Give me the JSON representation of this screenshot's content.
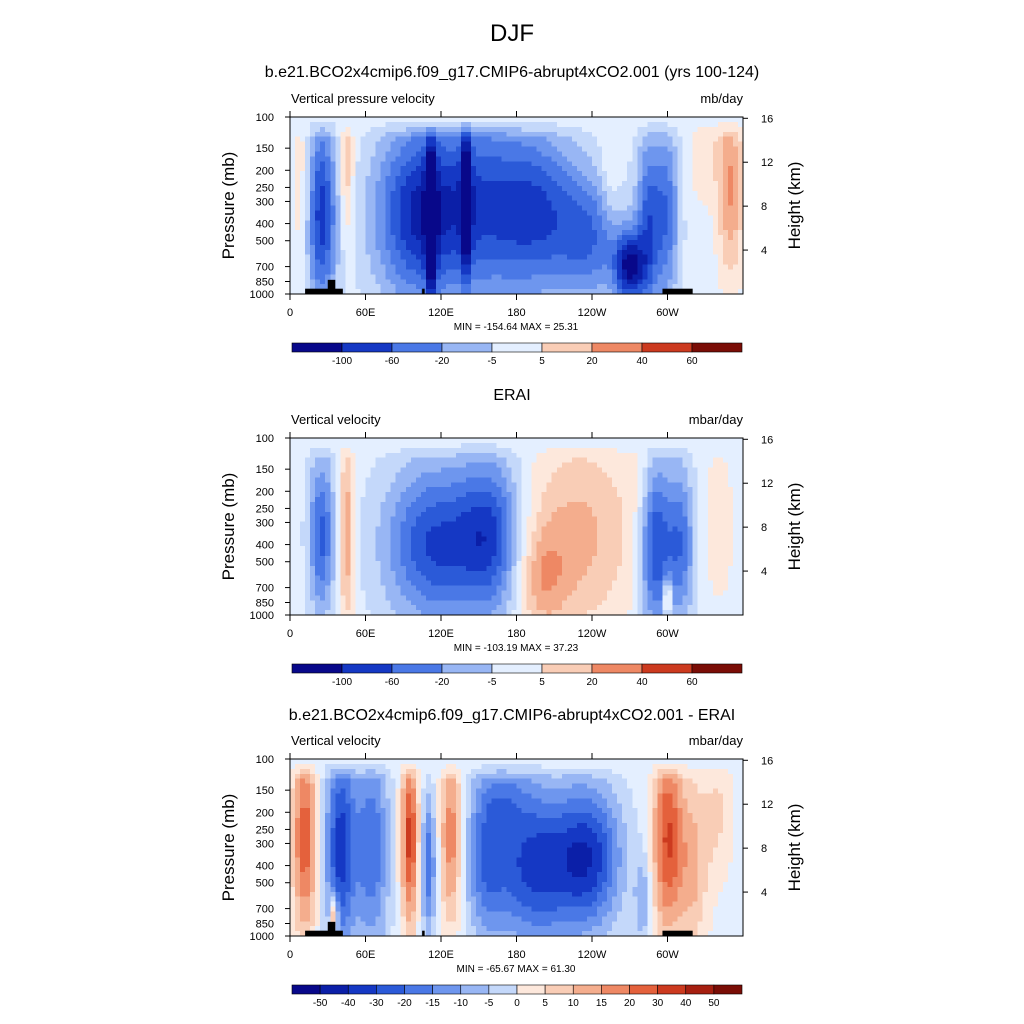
{
  "title": "DJF",
  "panels": [
    {
      "title": "b.e21.BCO2x4cmip6.f09_g17.CMIP6-abrupt4xCO2.001 (yrs 100-124)",
      "left_label": "Vertical pressure velocity",
      "right_label": "mb/day",
      "minmax": "MIN = -154.64  MAX =  25.31"
    },
    {
      "title": "ERAI",
      "left_label": "Vertical velocity",
      "right_label": "mbar/day",
      "minmax": "MIN = -103.19  MAX =  37.23"
    },
    {
      "title": "b.e21.BCO2x4cmip6.f09_g17.CMIP6-abrupt4xCO2.001 - ERAI",
      "left_label": "Vertical velocity",
      "right_label": "mbar/day",
      "minmax": "MIN = -65.67  MAX =  61.30"
    }
  ],
  "colors": {
    "scale": [
      "#08088a",
      "#0b1fa8",
      "#1538c4",
      "#2b5ad8",
      "#4a78e6",
      "#6e96ee",
      "#98b6f4",
      "#c4d8fa",
      "#e4efff",
      "#fde8dc",
      "#f9cdb6",
      "#f4ad8d",
      "#ee8864",
      "#e4613c",
      "#cc3a1f",
      "#a61f10",
      "#7a0d06"
    ]
  },
  "chart_data": [
    {
      "type": "heatmap",
      "x_label": "",
      "y_label": "Pressure (mb)",
      "y2_label": "Height (km)",
      "x_ticks": [
        "0",
        "60E",
        "120E",
        "180",
        "120W",
        "60W"
      ],
      "x_tick_lon": [
        0,
        60,
        120,
        180,
        240,
        300
      ],
      "y_ticks": [
        "100",
        "150",
        "200",
        "250",
        "300",
        "400",
        "500",
        "700",
        "850",
        "1000"
      ],
      "y_tick_values": [
        100,
        150,
        200,
        250,
        300,
        400,
        500,
        700,
        850,
        1000
      ],
      "y2_ticks": [
        "4",
        "8",
        "12",
        "16"
      ],
      "y2_tick_values": [
        4,
        8,
        12,
        16
      ],
      "xlim": [
        0,
        360
      ],
      "ylim": [
        1000,
        100
      ],
      "colorbar_labels": [
        "-100",
        "-60",
        "-20",
        "-5",
        "5",
        "20",
        "40",
        "60"
      ],
      "min": -154.64,
      "max": 25.31
    },
    {
      "type": "heatmap",
      "x_label": "",
      "y_label": "Pressure (mb)",
      "y2_label": "Height (km)",
      "x_ticks": [
        "0",
        "60E",
        "120E",
        "180",
        "120W",
        "60W"
      ],
      "x_tick_lon": [
        0,
        60,
        120,
        180,
        240,
        300
      ],
      "y_ticks": [
        "100",
        "150",
        "200",
        "250",
        "300",
        "400",
        "500",
        "700",
        "850",
        "1000"
      ],
      "y_tick_values": [
        100,
        150,
        200,
        250,
        300,
        400,
        500,
        700,
        850,
        1000
      ],
      "y2_ticks": [
        "4",
        "8",
        "12",
        "16"
      ],
      "y2_tick_values": [
        4,
        8,
        12,
        16
      ],
      "xlim": [
        0,
        360
      ],
      "ylim": [
        1000,
        100
      ],
      "colorbar_labels": [
        "-100",
        "-60",
        "-20",
        "-5",
        "5",
        "20",
        "40",
        "60"
      ],
      "min": -103.19,
      "max": 37.23
    },
    {
      "type": "heatmap",
      "x_label": "",
      "y_label": "Pressure (mb)",
      "y2_label": "Height (km)",
      "x_ticks": [
        "0",
        "60E",
        "120E",
        "180",
        "120W",
        "60W"
      ],
      "x_tick_lon": [
        0,
        60,
        120,
        180,
        240,
        300
      ],
      "y_ticks": [
        "100",
        "150",
        "200",
        "250",
        "300",
        "400",
        "500",
        "700",
        "850",
        "1000"
      ],
      "y_tick_values": [
        100,
        150,
        200,
        250,
        300,
        400,
        500,
        700,
        850,
        1000
      ],
      "y2_ticks": [
        "4",
        "8",
        "12",
        "16"
      ],
      "y2_tick_values": [
        4,
        8,
        12,
        16
      ],
      "xlim": [
        0,
        360
      ],
      "ylim": [
        1000,
        100
      ],
      "colorbar_labels": [
        "-50",
        "-40",
        "-30",
        "-20",
        "-15",
        "-10",
        "-5",
        "0",
        "5",
        "10",
        "15",
        "20",
        "30",
        "40",
        "50"
      ],
      "min": -65.67,
      "max": 61.3
    }
  ]
}
